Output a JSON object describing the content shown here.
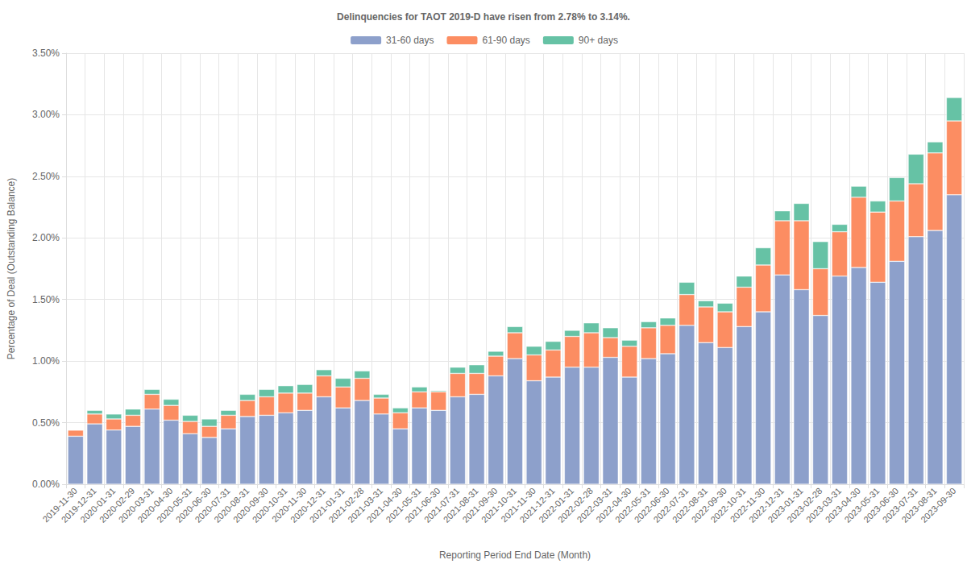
{
  "chart_data": {
    "type": "bar",
    "title": "Delinquencies for TAOT 2019-D have risen from 2.78% to 3.14%.",
    "x_label": "Reporting Period End Date (Month)",
    "y_label": "Percentage of Deal (Outstanding Balance)",
    "categories": [
      "2019-11-30",
      "2019-12-31",
      "2020-01-31",
      "2020-02-29",
      "2020-03-31",
      "2020-04-30",
      "2020-05-31",
      "2020-06-30",
      "2020-07-31",
      "2020-08-31",
      "2020-09-30",
      "2020-10-31",
      "2020-11-30",
      "2020-12-31",
      "2021-01-31",
      "2021-02-28",
      "2021-03-31",
      "2021-04-30",
      "2021-05-31",
      "2021-06-30",
      "2021-07-31",
      "2021-08-31",
      "2021-09-30",
      "2021-10-31",
      "2021-11-30",
      "2021-12-31",
      "2022-01-31",
      "2022-02-28",
      "2022-03-31",
      "2022-04-30",
      "2022-05-31",
      "2022-06-30",
      "2022-07-31",
      "2022-08-31",
      "2022-09-30",
      "2022-10-31",
      "2022-11-30",
      "2022-12-31",
      "2023-01-31",
      "2023-02-28",
      "2023-03-31",
      "2023-04-30",
      "2023-05-31",
      "2023-06-30",
      "2023-07-31",
      "2023-08-31",
      "2023-09-30"
    ],
    "series": [
      {
        "name": "31-60 days",
        "color": "#8da0cb",
        "values": [
          0.39,
          0.49,
          0.44,
          0.47,
          0.61,
          0.52,
          0.41,
          0.38,
          0.45,
          0.55,
          0.56,
          0.58,
          0.6,
          0.71,
          0.62,
          0.68,
          0.57,
          0.45,
          0.62,
          0.6,
          0.71,
          0.73,
          0.88,
          1.02,
          0.84,
          0.87,
          0.95,
          0.95,
          1.03,
          0.87,
          1.02,
          1.06,
          1.29,
          1.15,
          1.11,
          1.28,
          1.4,
          1.7,
          1.58,
          1.37,
          1.69,
          1.76,
          1.64,
          1.81,
          2.01,
          2.06,
          2.35
        ]
      },
      {
        "name": "61-90 days",
        "color": "#fc8d62",
        "values": [
          0.05,
          0.08,
          0.09,
          0.09,
          0.12,
          0.12,
          0.1,
          0.09,
          0.11,
          0.13,
          0.15,
          0.16,
          0.14,
          0.17,
          0.17,
          0.18,
          0.13,
          0.13,
          0.13,
          0.15,
          0.19,
          0.17,
          0.16,
          0.21,
          0.21,
          0.22,
          0.25,
          0.28,
          0.16,
          0.25,
          0.25,
          0.23,
          0.25,
          0.29,
          0.29,
          0.32,
          0.38,
          0.44,
          0.56,
          0.38,
          0.36,
          0.57,
          0.57,
          0.49,
          0.43,
          0.63,
          0.6
        ]
      },
      {
        "name": "90+ days",
        "color": "#66c2a5",
        "values": [
          0.0,
          0.03,
          0.04,
          0.05,
          0.04,
          0.05,
          0.05,
          0.06,
          0.04,
          0.05,
          0.06,
          0.06,
          0.07,
          0.05,
          0.07,
          0.06,
          0.03,
          0.04,
          0.04,
          0.01,
          0.05,
          0.07,
          0.04,
          0.05,
          0.07,
          0.07,
          0.05,
          0.08,
          0.08,
          0.05,
          0.05,
          0.06,
          0.1,
          0.05,
          0.07,
          0.09,
          0.14,
          0.08,
          0.14,
          0.22,
          0.06,
          0.09,
          0.09,
          0.19,
          0.24,
          0.09,
          0.19
        ]
      }
    ],
    "ylim": [
      0,
      3.5
    ],
    "yticks": [
      {
        "value": 0,
        "label": "0.00%"
      },
      {
        "value": 0.5,
        "label": "0.50%"
      },
      {
        "value": 1,
        "label": "1.00%"
      },
      {
        "value": 1.5,
        "label": "1.50%"
      },
      {
        "value": 2,
        "label": "2.00%"
      },
      {
        "value": 2.5,
        "label": "2.50%"
      },
      {
        "value": 3,
        "label": "3.00%"
      },
      {
        "value": 3.5,
        "label": "3.50%"
      }
    ],
    "stacked": true,
    "grid": true,
    "legend": "top"
  }
}
